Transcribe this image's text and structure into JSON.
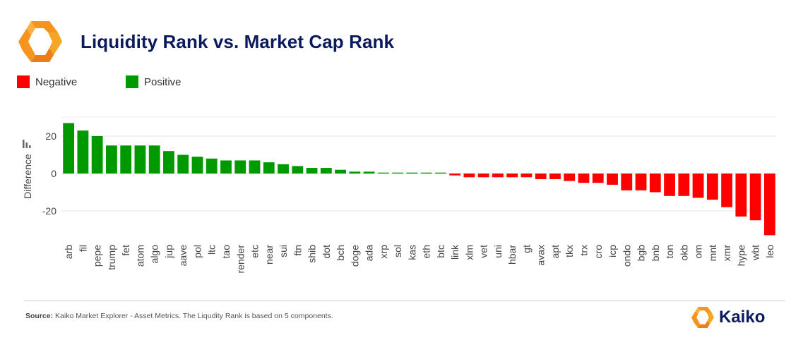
{
  "header": {
    "title": "Liquidity Rank vs. Market Cap Rank"
  },
  "legend": [
    {
      "label": "Negative",
      "color": "#ff0000"
    },
    {
      "label": "Positive",
      "color": "#009900"
    }
  ],
  "footer": {
    "source_label": "Source:",
    "source_text": "Kaiko Market Explorer - Asset Metrics. The Liqudity Rank is based on 5 components.",
    "brand": "Kaiko"
  },
  "colors": {
    "positive": "#009900",
    "negative": "#ff0000",
    "title": "#0b1a5c",
    "logo_orange": "#f7941d"
  },
  "chart_data": {
    "type": "bar",
    "ylabel": "Difference",
    "xlabel": "",
    "ylim": [
      -34,
      30
    ],
    "yticks": [
      20,
      0,
      -20
    ],
    "grid": true,
    "legend_position": "top-left",
    "categories": [
      "arb",
      "fil",
      "pepe",
      "trump",
      "fet",
      "atom",
      "algo",
      "jup",
      "aave",
      "pol",
      "ltc",
      "tao",
      "render",
      "etc",
      "near",
      "sui",
      "ftn",
      "shib",
      "dot",
      "bch",
      "doge",
      "ada",
      "xrp",
      "sol",
      "kas",
      "eth",
      "btc",
      "link",
      "xlm",
      "vet",
      "uni",
      "hbar",
      "gt",
      "avax",
      "apt",
      "tkx",
      "trx",
      "cro",
      "icp",
      "ondo",
      "bgb",
      "bnb",
      "ton",
      "okb",
      "om",
      "mnt",
      "xmr",
      "hype",
      "wbt",
      "leo"
    ],
    "values": [
      27,
      23,
      20,
      15,
      15,
      15,
      15,
      12,
      10,
      9,
      8,
      7,
      7,
      7,
      6,
      5,
      4,
      3,
      3,
      2,
      1,
      1,
      0.5,
      0.5,
      0.5,
      0.5,
      0.5,
      -1,
      -2,
      -2,
      -2,
      -2,
      -2,
      -3,
      -3,
      -4,
      -5,
      -5,
      -6,
      -9,
      -9,
      -10,
      -12,
      -12,
      -13,
      -14,
      -18,
      -23,
      -25,
      -33
    ]
  }
}
